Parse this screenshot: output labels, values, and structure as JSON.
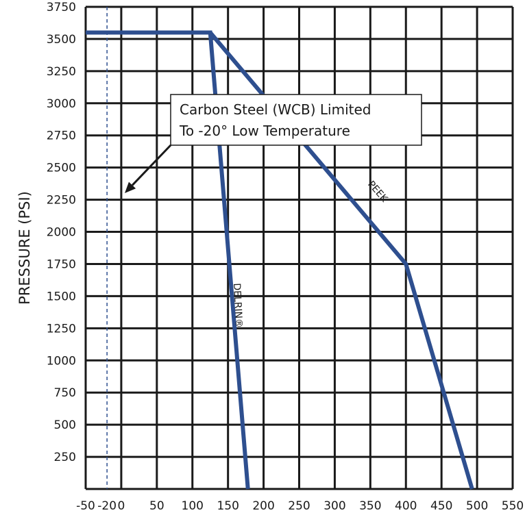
{
  "chart_data": {
    "type": "line",
    "title": "",
    "xlabel": "",
    "ylabel": "PRESSURE (PSI)",
    "xlim": [
      -50,
      550
    ],
    "ylim": [
      0,
      3750
    ],
    "x_ticks": [
      "-50",
      "-20",
      "0",
      "50",
      "100",
      "150",
      "200",
      "250",
      "300",
      "350",
      "400",
      "450",
      "500",
      "550"
    ],
    "y_ticks": [
      "3750",
      "3500",
      "3250",
      "3000",
      "2750",
      "2500",
      "2250",
      "2000",
      "1750",
      "1500",
      "1250",
      "1000",
      "750",
      "500",
      "250"
    ],
    "grid": true,
    "series": [
      {
        "name": "DELRIN®",
        "points": [
          [
            -50,
            3550
          ],
          [
            125,
            3550
          ],
          [
            178,
            0
          ]
        ]
      },
      {
        "name": "PEEK",
        "points": [
          [
            -50,
            3550
          ],
          [
            125,
            3550
          ],
          [
            400,
            1750
          ],
          [
            493,
            0
          ]
        ]
      }
    ],
    "reference_line": {
      "x": -20
    },
    "annotation": {
      "lines": [
        "Carbon Steel (WCB) Limited",
        "To -20° Low Temperature"
      ]
    },
    "colors": {
      "series": "#2e4f8f",
      "grid": "#1a1a1a",
      "reference": "#2e4f8f",
      "text": "#1a1a1a"
    }
  }
}
